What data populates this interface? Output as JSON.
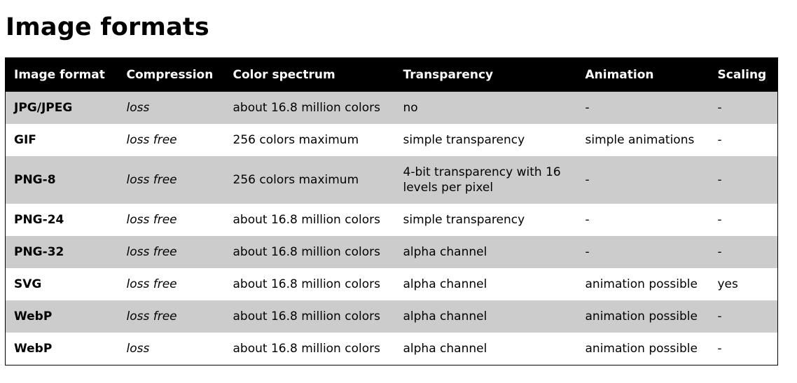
{
  "page": {
    "title": "Image formats"
  },
  "table": {
    "headers": [
      "Image format",
      "Compression",
      "Color spectrum",
      "Transparency",
      "Animation",
      "Scaling"
    ],
    "rows": [
      [
        "JPG/JPEG",
        "loss",
        "about 16.8 million colors",
        "no",
        "-",
        "-"
      ],
      [
        "GIF",
        "loss free",
        "256 colors maximum",
        "simple transparency",
        "simple animations",
        "-"
      ],
      [
        "PNG-8",
        "loss free",
        "256 colors maximum",
        "4-bit transparency with 16 levels per pixel",
        "-",
        "-"
      ],
      [
        "PNG-24",
        "loss free",
        "about 16.8 million colors",
        "simple transparency",
        "-",
        "-"
      ],
      [
        "PNG-32",
        "loss free",
        "about 16.8 million colors",
        "alpha channel",
        "-",
        "-"
      ],
      [
        "SVG",
        "loss free",
        "about 16.8 million colors",
        "alpha channel",
        "animation possible",
        "yes"
      ],
      [
        "WebP",
        "loss free",
        "about 16.8 million colors",
        "alpha channel",
        "animation possible",
        "-"
      ],
      [
        "WebP",
        "loss",
        "about 16.8 million colors",
        "alpha channel",
        "animation possible",
        "-"
      ]
    ]
  },
  "colors": {
    "header_bg": "#000000",
    "header_text": "#ffffff",
    "row_shaded": "#cccccc",
    "row_plain": "#ffffff"
  }
}
